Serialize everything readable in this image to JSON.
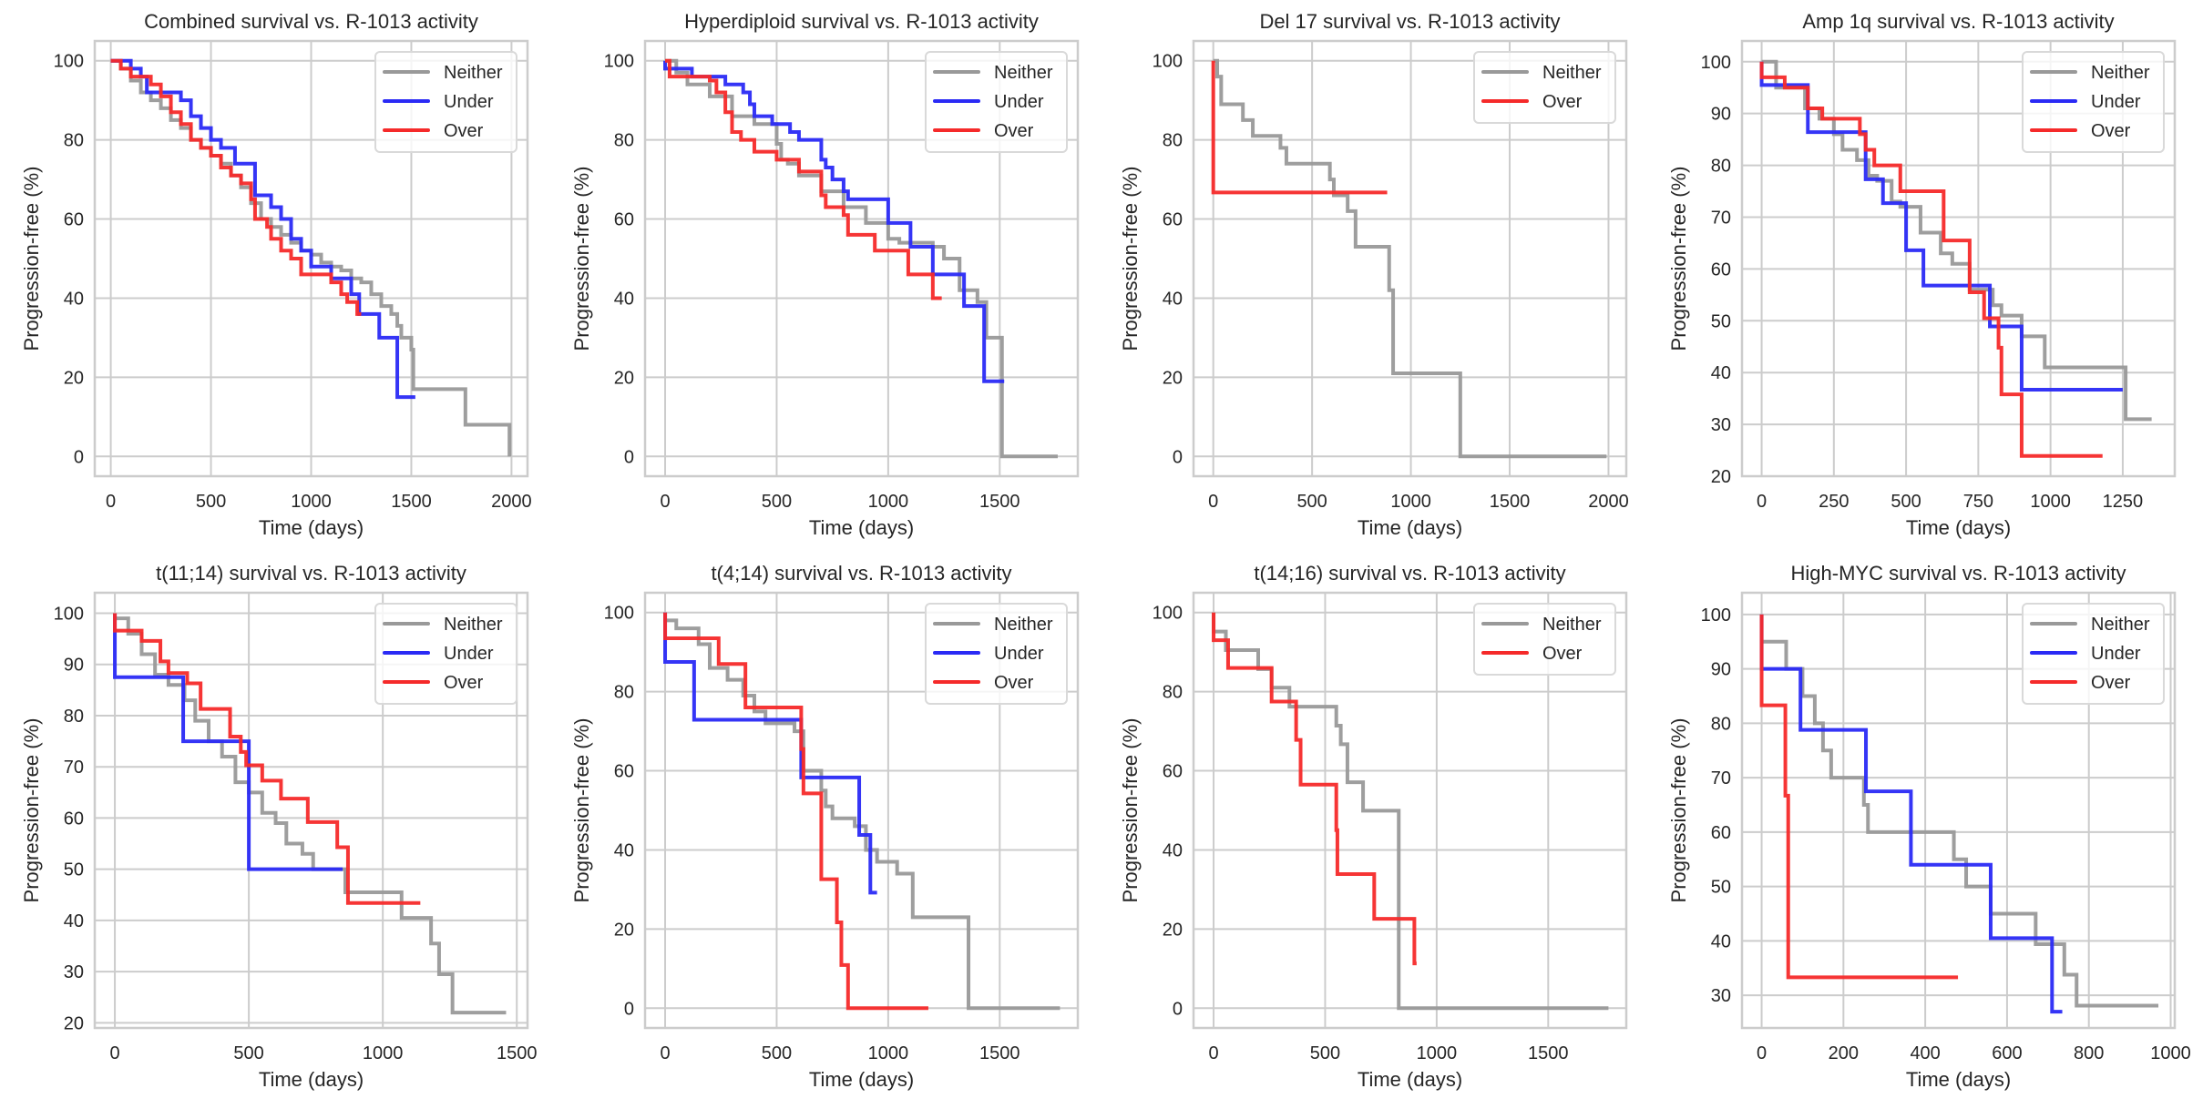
{
  "figure": {
    "series_colors": {
      "Neither": "#999999",
      "Under": "#2a2af5",
      "Over": "#f52a2a"
    },
    "grid_color": "#cccccc"
  },
  "chart_data": [
    {
      "type": "line",
      "title": "Combined survival vs. R-1013 activity",
      "xlabel": "Time (days)",
      "ylabel": "Progression-free (%)",
      "xlim": [
        -80,
        2080
      ],
      "ylim": [
        -5,
        105
      ],
      "xticks": [
        0,
        500,
        1000,
        1500,
        2000
      ],
      "yticks": [
        0,
        20,
        40,
        60,
        80,
        100
      ],
      "grid": true,
      "legend": "top-right",
      "series": [
        {
          "name": "Neither",
          "x": [
            0,
            50,
            100,
            150,
            200,
            250,
            300,
            350,
            400,
            450,
            500,
            550,
            600,
            650,
            700,
            750,
            800,
            850,
            900,
            950,
            1000,
            1050,
            1100,
            1150,
            1200,
            1250,
            1300,
            1350,
            1400,
            1430,
            1450,
            1500,
            1510,
            1760,
            1770,
            1990
          ],
          "y": [
            100,
            98,
            95,
            92,
            90,
            88,
            85,
            83,
            80,
            78,
            76,
            74,
            71,
            68,
            64,
            60,
            58,
            56,
            54,
            52,
            51,
            49,
            48,
            47,
            45,
            44,
            41,
            38,
            36,
            33,
            30,
            27,
            17,
            17,
            8,
            0
          ]
        },
        {
          "name": "Under",
          "x": [
            0,
            100,
            150,
            180,
            250,
            350,
            400,
            450,
            500,
            550,
            620,
            700,
            720,
            800,
            850,
            900,
            950,
            1000,
            1100,
            1200,
            1240,
            1340,
            1430,
            1520
          ],
          "y": [
            100,
            98,
            96,
            92,
            92,
            90,
            86,
            83,
            80,
            78,
            74,
            74,
            66,
            63,
            60,
            55,
            52,
            48,
            45,
            41,
            36,
            30,
            15,
            15
          ]
        },
        {
          "name": "Over",
          "x": [
            0,
            50,
            100,
            200,
            250,
            300,
            350,
            400,
            450,
            500,
            550,
            600,
            650,
            700,
            720,
            780,
            800,
            850,
            900,
            950,
            1100,
            1150,
            1180,
            1230,
            1250
          ],
          "y": [
            100,
            98,
            96,
            94,
            91,
            87,
            84,
            80,
            78,
            76,
            73,
            71,
            69,
            65,
            60,
            58,
            55,
            52,
            50,
            46,
            44,
            41,
            39,
            36,
            36
          ]
        }
      ]
    },
    {
      "type": "line",
      "title": "Hyperdiploid survival vs. R-1013 activity",
      "xlabel": "Time (days)",
      "ylabel": "Progression-free (%)",
      "xlim": [
        -90,
        1850
      ],
      "ylim": [
        -5,
        105
      ],
      "xticks": [
        0,
        500,
        1000,
        1500
      ],
      "yticks": [
        0,
        20,
        40,
        60,
        80,
        100
      ],
      "grid": true,
      "legend": "top-right",
      "series": [
        {
          "name": "Neither",
          "x": [
            0,
            50,
            100,
            200,
            300,
            400,
            500,
            520,
            550,
            600,
            700,
            800,
            900,
            1000,
            1050,
            1200,
            1250,
            1300,
            1320,
            1400,
            1440,
            1510,
            1760
          ],
          "y": [
            100,
            97,
            94,
            91,
            86,
            84,
            79,
            75,
            74,
            71,
            67,
            63,
            59,
            55,
            54,
            53,
            50,
            50,
            42,
            39,
            30,
            0,
            0
          ]
        },
        {
          "name": "Under",
          "x": [
            0,
            120,
            270,
            350,
            380,
            400,
            480,
            560,
            600,
            700,
            720,
            750,
            800,
            820,
            1000,
            1100,
            1200,
            1340,
            1430,
            1520
          ],
          "y": [
            98,
            96,
            94,
            92,
            89,
            86,
            84,
            82,
            80,
            75,
            73,
            70,
            67,
            65,
            59,
            53,
            46,
            38,
            19,
            19
          ]
        },
        {
          "name": "Over",
          "x": [
            0,
            20,
            200,
            230,
            270,
            300,
            340,
            400,
            500,
            600,
            700,
            720,
            800,
            820,
            940,
            1090,
            1200,
            1240
          ],
          "y": [
            100,
            96,
            95,
            92,
            87,
            82,
            80,
            77,
            75,
            72,
            66,
            63,
            61,
            56,
            52,
            46,
            40,
            40
          ]
        }
      ]
    },
    {
      "type": "line",
      "title": "Del 17 survival vs. R-1013 activity",
      "xlabel": "Time (days)",
      "ylabel": "Progression-free (%)",
      "xlim": [
        -100,
        2090
      ],
      "ylim": [
        -5,
        105
      ],
      "xticks": [
        0,
        500,
        1000,
        1500,
        2000
      ],
      "yticks": [
        0,
        20,
        40,
        60,
        80,
        100
      ],
      "grid": true,
      "legend": "top-right",
      "series": [
        {
          "name": "Neither",
          "x": [
            0,
            20,
            40,
            150,
            200,
            340,
            370,
            590,
            610,
            680,
            720,
            890,
            910,
            1250,
            1990
          ],
          "y": [
            100,
            96,
            89,
            85,
            81,
            78,
            74,
            70,
            66,
            62,
            53,
            42,
            21,
            0,
            0
          ]
        },
        {
          "name": "Over",
          "x": [
            0,
            0,
            880
          ],
          "y": [
            100,
            66.7,
            66.7
          ]
        }
      ]
    },
    {
      "type": "line",
      "title": "Amp 1q survival vs. R-1013 activity",
      "xlabel": "Time (days)",
      "ylabel": "Progression-free (%)",
      "xlim": [
        -68,
        1430
      ],
      "ylim": [
        20,
        104
      ],
      "xticks": [
        0,
        250,
        500,
        750,
        1000,
        1250
      ],
      "yticks": [
        20,
        30,
        40,
        50,
        60,
        70,
        80,
        90,
        100
      ],
      "grid": true,
      "legend": "top-right",
      "series": [
        {
          "name": "Neither",
          "x": [
            0,
            50,
            150,
            200,
            250,
            280,
            330,
            370,
            400,
            450,
            480,
            550,
            620,
            660,
            720,
            800,
            830,
            900,
            980,
            1260,
            1350
          ],
          "y": [
            100,
            95,
            91,
            89,
            86,
            83,
            81,
            78,
            77,
            73,
            72,
            67,
            63,
            61,
            56,
            53,
            51,
            47,
            41,
            31,
            31
          ]
        },
        {
          "name": "Under",
          "x": [
            0,
            160,
            360,
            420,
            500,
            560,
            790,
            900,
            1250
          ],
          "y": [
            95.5,
            86.4,
            77.3,
            72.7,
            63.6,
            56.8,
            48.9,
            36.7,
            36.7
          ]
        },
        {
          "name": "Over",
          "x": [
            0,
            80,
            160,
            210,
            340,
            360,
            390,
            480,
            630,
            720,
            770,
            820,
            830,
            900,
            1180
          ],
          "y": [
            97,
            95,
            91,
            89,
            86,
            83,
            80,
            75,
            65.5,
            55.5,
            50.5,
            44.8,
            35.8,
            23.9,
            23.9
          ]
        }
      ]
    },
    {
      "type": "line",
      "title": "t(11;14) survival vs. R-1013 activity",
      "xlabel": "Time (days)",
      "ylabel": "Progression-free (%)",
      "xlim": [
        -75,
        1540
      ],
      "ylim": [
        19,
        104
      ],
      "xticks": [
        0,
        500,
        1000,
        1500
      ],
      "yticks": [
        20,
        30,
        40,
        50,
        60,
        70,
        80,
        90,
        100
      ],
      "grid": true,
      "legend": "top-right",
      "series": [
        {
          "name": "Neither",
          "x": [
            0,
            50,
            100,
            150,
            200,
            260,
            300,
            350,
            400,
            450,
            500,
            550,
            600,
            640,
            700,
            740,
            860,
            1070,
            1180,
            1210,
            1260,
            1460
          ],
          "y": [
            99,
            96,
            92,
            88,
            86,
            83,
            79,
            75,
            72,
            67,
            65,
            61,
            59,
            55,
            53,
            50,
            45.5,
            40.5,
            35.5,
            29.5,
            22,
            22
          ]
        },
        {
          "name": "Under",
          "x": [
            0,
            255,
            500,
            850
          ],
          "y": [
            87.5,
            75,
            50,
            50
          ]
        },
        {
          "name": "Over",
          "x": [
            0,
            100,
            170,
            200,
            270,
            320,
            430,
            470,
            490,
            550,
            620,
            720,
            830,
            870,
            1140
          ],
          "y": [
            96.6,
            94.6,
            90.6,
            88.3,
            86.3,
            81.3,
            75.9,
            72.9,
            70.3,
            67.3,
            63.8,
            59.2,
            54.3,
            43.4,
            43.4
          ]
        }
      ]
    },
    {
      "type": "line",
      "title": "t(4;14) survival vs. R-1013 activity",
      "xlabel": "Time (days)",
      "ylabel": "Progression-free (%)",
      "xlim": [
        -90,
        1850
      ],
      "ylim": [
        -5,
        105
      ],
      "xticks": [
        0,
        500,
        1000,
        1500
      ],
      "yticks": [
        0,
        20,
        40,
        60,
        80,
        100
      ],
      "grid": true,
      "legend": "top-right",
      "series": [
        {
          "name": "Neither",
          "x": [
            0,
            50,
            150,
            200,
            280,
            350,
            400,
            450,
            580,
            620,
            700,
            720,
            750,
            850,
            900,
            950,
            1040,
            1110,
            1360,
            1770
          ],
          "y": [
            98,
            96,
            92,
            86,
            83,
            79,
            75,
            72,
            70,
            60,
            55,
            51,
            48,
            46,
            40,
            37,
            34,
            23,
            0,
            0
          ]
        },
        {
          "name": "Under",
          "x": [
            0,
            130,
            610,
            870,
            920,
            950
          ],
          "y": [
            87.5,
            72.9,
            58.3,
            43.8,
            29.2,
            29.2
          ]
        },
        {
          "name": "Over",
          "x": [
            0,
            240,
            360,
            610,
            620,
            700,
            770,
            790,
            820,
            1180
          ],
          "y": [
            93.5,
            87,
            76,
            65.5,
            54.3,
            32.6,
            21.7,
            10.9,
            0,
            0
          ]
        }
      ]
    },
    {
      "type": "line",
      "title": "t(14;16) survival vs. R-1013 activity",
      "xlabel": "Time (days)",
      "ylabel": "Progression-free (%)",
      "xlim": [
        -90,
        1850
      ],
      "ylim": [
        -5,
        105
      ],
      "xticks": [
        0,
        500,
        1000,
        1500
      ],
      "yticks": [
        0,
        20,
        40,
        60,
        80,
        100
      ],
      "grid": true,
      "legend": "top-right",
      "series": [
        {
          "name": "Neither",
          "x": [
            0,
            55,
            200,
            260,
            340,
            550,
            570,
            600,
            670,
            830,
            1770
          ],
          "y": [
            95.2,
            90.5,
            85.7,
            81,
            76.2,
            71.4,
            66.7,
            57.1,
            49.9,
            0,
            0
          ]
        },
        {
          "name": "Over",
          "x": [
            0,
            65,
            260,
            370,
            390,
            550,
            555,
            720,
            900,
            910
          ],
          "y": [
            93,
            86,
            77.5,
            67.8,
            56.5,
            45,
            33.9,
            22.6,
            11.3,
            11.3
          ]
        }
      ]
    },
    {
      "type": "line",
      "title": "High-MYC survival vs. R-1013 activity",
      "xlabel": "Time (days)",
      "ylabel": "Progression-free (%)",
      "xlim": [
        -48,
        1010
      ],
      "ylim": [
        24,
        104
      ],
      "xticks": [
        0,
        200,
        400,
        600,
        800,
        1000
      ],
      "yticks": [
        30,
        40,
        50,
        60,
        70,
        80,
        90,
        100
      ],
      "grid": true,
      "legend": "top-right",
      "series": [
        {
          "name": "Neither",
          "x": [
            0,
            60,
            100,
            130,
            150,
            170,
            250,
            260,
            470,
            500,
            560,
            670,
            740,
            770,
            970
          ],
          "y": [
            95,
            90,
            85,
            80,
            75,
            70,
            65,
            60,
            55,
            50,
            45,
            39.4,
            33.8,
            28.1,
            28.1
          ]
        },
        {
          "name": "Under",
          "x": [
            0,
            95,
            255,
            365,
            560,
            710,
            735
          ],
          "y": [
            90,
            78.8,
            67.5,
            54,
            40.5,
            27,
            27
          ]
        },
        {
          "name": "Over",
          "x": [
            0,
            58,
            65,
            480
          ],
          "y": [
            83.3,
            66.7,
            33.3,
            33.3
          ]
        }
      ]
    }
  ]
}
